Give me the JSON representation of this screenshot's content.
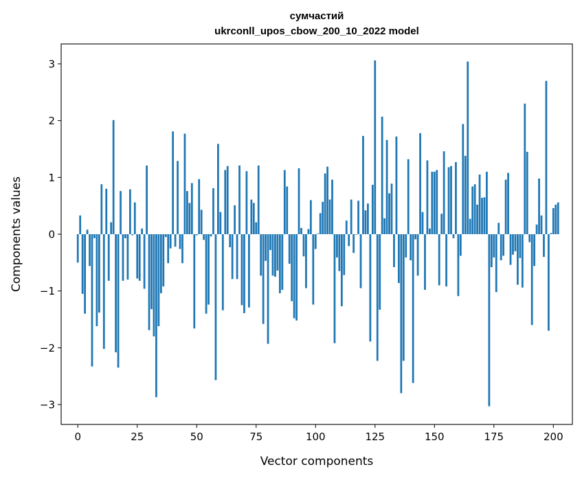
{
  "chart_data": {
    "type": "bar",
    "title_line1": "сумчастий",
    "title_line2": "ukrconll_upos_cbow_200_10_2022 model",
    "xlabel": "Vector components",
    "ylabel": "Components values",
    "xlim": [
      -7,
      208
    ],
    "ylim": [
      -3.35,
      3.35
    ],
    "xticks": [
      0,
      25,
      50,
      75,
      100,
      125,
      150,
      175,
      200
    ],
    "xtick_labels": [
      "0",
      "25",
      "50",
      "75",
      "100",
      "125",
      "150",
      "175",
      "200"
    ],
    "yticks": [
      3,
      2,
      1,
      0,
      -1,
      -2,
      -3
    ],
    "ytick_labels": [
      "3",
      "2",
      "1",
      "0",
      "−1",
      "−2",
      "−3"
    ],
    "bar_color": "#1f77b4",
    "values": [
      -0.5,
      0.33,
      -1.05,
      -1.4,
      0.08,
      -0.56,
      -2.33,
      -0.07,
      -1.62,
      -1.38,
      0.88,
      -2.02,
      0.8,
      -0.82,
      0.21,
      2.01,
      -2.08,
      -2.35,
      0.76,
      -0.82,
      -0.07,
      -0.8,
      0.79,
      -0.02,
      0.56,
      -0.78,
      -0.82,
      0.1,
      -0.96,
      1.21,
      -1.69,
      -1.32,
      -1.8,
      -2.87,
      -1.62,
      -1.04,
      -0.92,
      -0.05,
      -0.51,
      -0.25,
      1.81,
      -0.22,
      1.29,
      -0.26,
      -0.51,
      1.77,
      0.76,
      0.55,
      0.9,
      -1.66,
      -0.02,
      0.97,
      0.43,
      -0.1,
      -1.4,
      -1.24,
      -0.04,
      0.81,
      -2.57,
      1.59,
      0.39,
      -1.34,
      1.13,
      1.2,
      -0.23,
      -0.79,
      0.51,
      -0.79,
      1.21,
      -1.25,
      -1.39,
      1.11,
      -1.29,
      0.61,
      0.55,
      0.21,
      1.21,
      -0.73,
      -1.58,
      -0.47,
      -1.93,
      -0.28,
      -0.73,
      -0.75,
      -0.64,
      -1.04,
      -0.98,
      1.13,
      0.84,
      -0.52,
      -1.18,
      -1.48,
      -1.52,
      1.16,
      0.11,
      -0.39,
      -0.95,
      0.09,
      0.6,
      -1.24,
      -0.26,
      0.01,
      0.37,
      0.57,
      1.07,
      1.19,
      0.61,
      0.96,
      -1.92,
      -0.41,
      -0.65,
      -1.27,
      -0.72,
      0.24,
      -0.21,
      0.61,
      -0.33,
      -0.01,
      0.59,
      -0.95,
      1.73,
      0.42,
      0.54,
      -1.89,
      0.87,
      3.06,
      -2.23,
      -1.33,
      2.07,
      0.28,
      1.66,
      0.72,
      0.89,
      -0.58,
      1.72,
      -0.86,
      -2.8,
      -2.23,
      -0.41,
      1.32,
      -0.46,
      -2.62,
      -0.09,
      -0.73,
      1.78,
      0.39,
      -0.98,
      1.3,
      0.1,
      1.1,
      1.1,
      1.13,
      -0.9,
      0.36,
      1.46,
      -0.92,
      1.18,
      1.2,
      -0.07,
      1.27,
      -1.09,
      -0.38,
      1.94,
      1.38,
      3.04,
      0.27,
      0.84,
      0.88,
      0.52,
      1.05,
      0.64,
      0.65,
      1.1,
      -3.03,
      -0.58,
      -0.41,
      -1.02,
      0.2,
      -0.46,
      -0.38,
      0.96,
      1.08,
      -0.54,
      -0.36,
      -0.3,
      -0.89,
      -0.42,
      -0.94,
      2.3,
      1.45,
      -0.14,
      -1.6,
      -0.56,
      0.17,
      0.98,
      0.33,
      -0.4,
      2.7,
      -1.7,
      0.02,
      0.46,
      0.52,
      0.56
    ]
  }
}
